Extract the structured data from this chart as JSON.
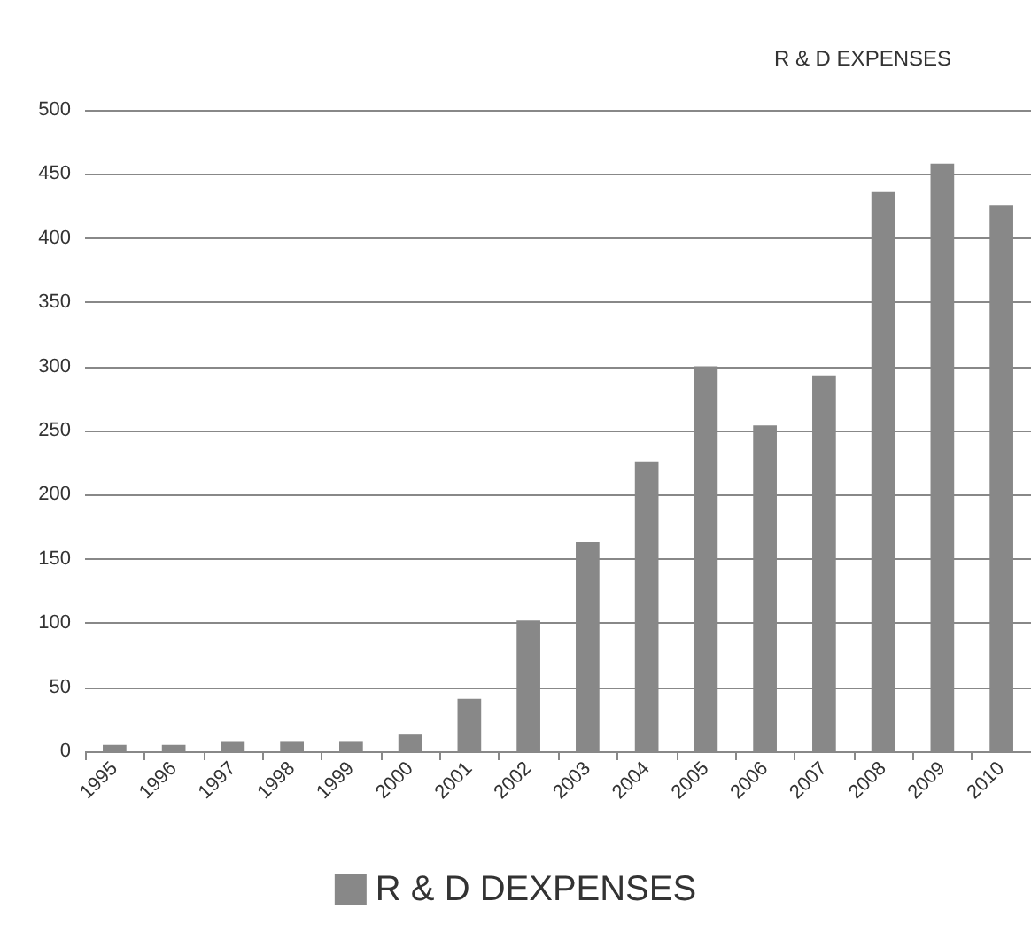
{
  "chart_data": {
    "type": "bar",
    "title": "R & D EXPENSES",
    "categories": [
      "1995",
      "1996",
      "1997",
      "1998",
      "1999",
      "2000",
      "2001",
      "2002",
      "2003",
      "2004",
      "2005",
      "2006",
      "2007",
      "2008",
      "2009",
      "2010"
    ],
    "series": [
      {
        "name": "R & D DEXPENSES",
        "color": "#888888",
        "values": [
          5,
          5,
          8,
          8,
          8,
          13,
          41,
          102,
          163,
          226,
          300,
          254,
          293,
          436,
          458,
          426
        ]
      }
    ],
    "ylim": [
      0,
      500
    ],
    "yticks": [
      0,
      50,
      100,
      150,
      200,
      250,
      300,
      350,
      400,
      450,
      500
    ],
    "grid": "y",
    "legend": "bottom"
  }
}
